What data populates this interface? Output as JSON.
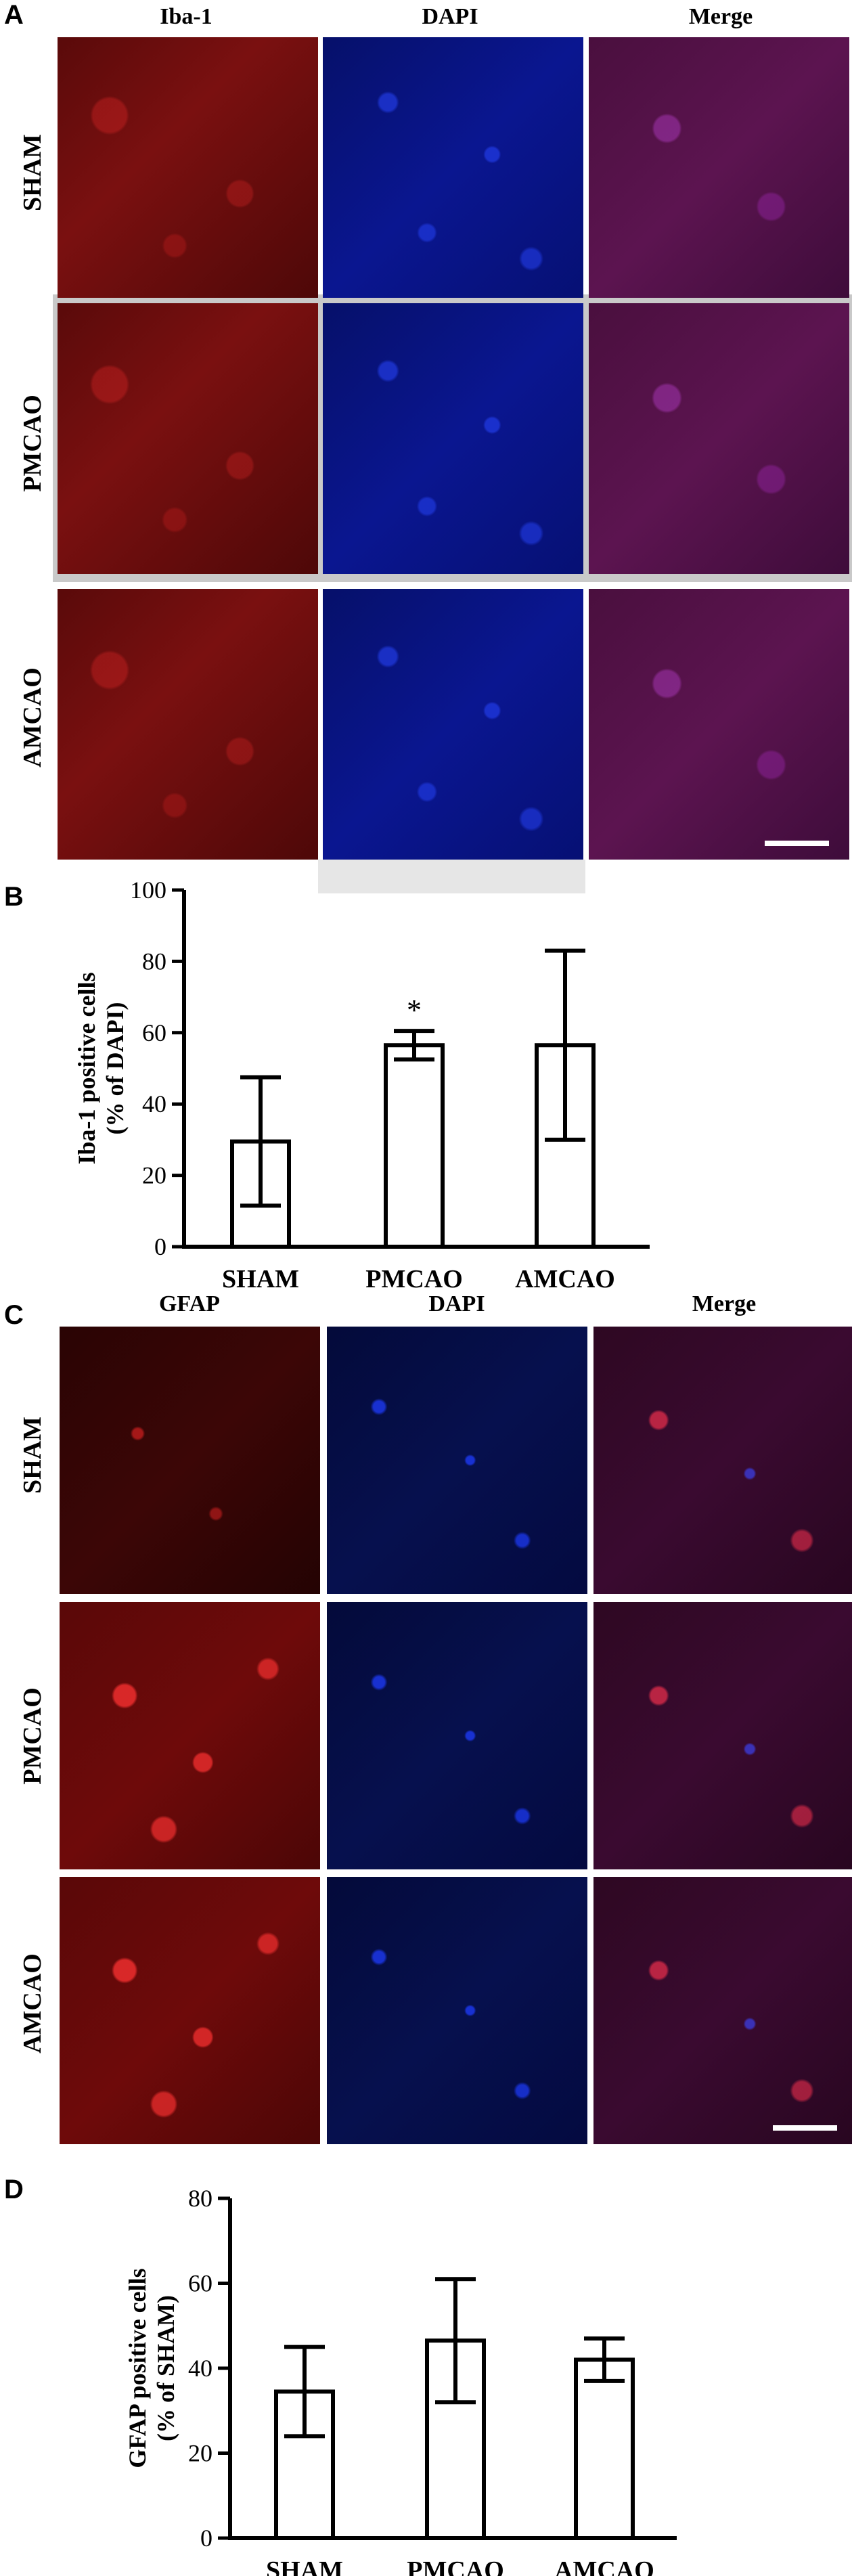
{
  "panel_a": {
    "letter": "A",
    "columns": [
      "Iba-1",
      "DAPI",
      "Merge"
    ],
    "rows": [
      "SHAM",
      "PMCAO",
      "AMCAO"
    ]
  },
  "panel_c": {
    "letter": "C",
    "columns": [
      "GFAP",
      "DAPI",
      "Merge"
    ],
    "rows": [
      "SHAM",
      "PMCAO",
      "AMCAO"
    ]
  },
  "chart_data": [
    {
      "panel_letter": "B",
      "type": "bar",
      "categories": [
        "SHAM",
        "PMCAO",
        "AMCAO"
      ],
      "values": [
        29.5,
        56.5,
        56.5
      ],
      "error": [
        18,
        4,
        26.5
      ],
      "annotations": [
        "",
        "*",
        ""
      ],
      "ylabel_line1": "Iba-1 positive cells",
      "ylabel_line2": "(% of DAPI)",
      "ylim": [
        0,
        100
      ],
      "yticks": [
        0,
        20,
        40,
        60,
        80,
        100
      ],
      "bar_fill": "#ffffff",
      "bar_stroke": "#000000"
    },
    {
      "panel_letter": "D",
      "type": "bar",
      "categories": [
        "SHAM",
        "PMCAO",
        "AMCAO"
      ],
      "values": [
        34.5,
        46.5,
        42
      ],
      "error": [
        10.5,
        14.5,
        5
      ],
      "annotations": [
        "",
        "",
        ""
      ],
      "ylabel_line1": "GFAP positive cells",
      "ylabel_line2": "(% of SHAM)",
      "ylim": [
        0,
        80
      ],
      "yticks": [
        0,
        20,
        40,
        60,
        80
      ],
      "bar_fill": "#ffffff",
      "bar_stroke": "#000000"
    }
  ]
}
